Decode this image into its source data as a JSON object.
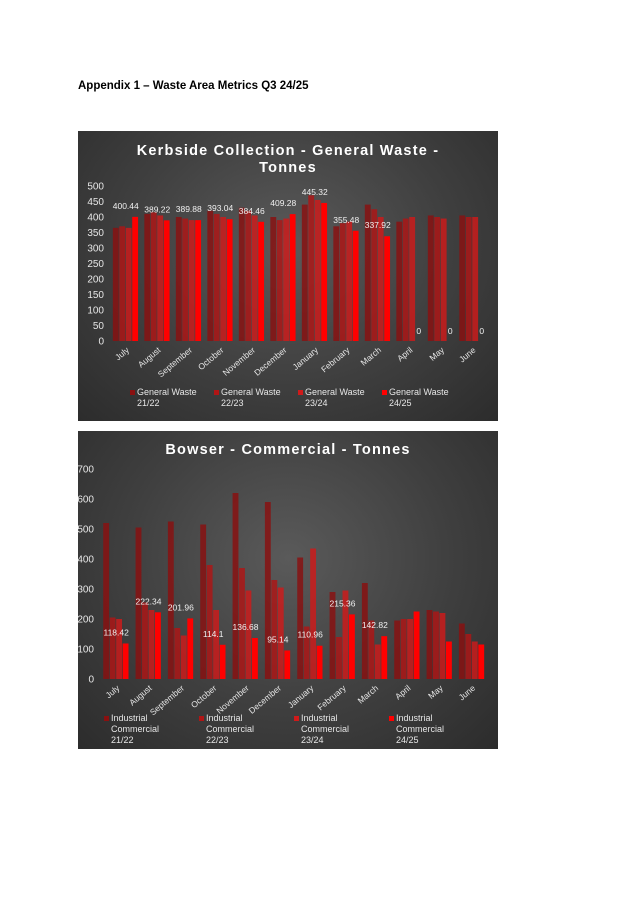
{
  "page": {
    "heading": "Appendix 1 – Waste Area Metrics Q3 24/25"
  },
  "chart_data": [
    {
      "type": "bar",
      "title_line1": "Kerbside Collection - General Waste -",
      "title_line2": "Tonnes",
      "categories": [
        "July",
        "August",
        "September",
        "October",
        "November",
        "December",
        "January",
        "February",
        "March",
        "April",
        "May",
        "June"
      ],
      "ylim": [
        0,
        500
      ],
      "yticks": [
        0,
        50,
        100,
        150,
        200,
        250,
        300,
        350,
        400,
        450,
        500
      ],
      "grid": false,
      "legend_position": "bottom",
      "colors": [
        "#8a1010",
        "#b01515",
        "#d01a1a",
        "#ff0000"
      ],
      "legend_lines": [
        [
          "General Waste",
          "21/22"
        ],
        [
          "General Waste",
          "22/23"
        ],
        [
          "General Waste",
          "23/24"
        ],
        [
          "General Waste",
          "24/25"
        ]
      ],
      "series": [
        {
          "name": "General Waste 21/22",
          "values": [
            365,
            410,
            400,
            420,
            430,
            400,
            440,
            370,
            440,
            385,
            405,
            405
          ]
        },
        {
          "name": "General Waste 22/23",
          "values": [
            370,
            415,
            395,
            410,
            420,
            390,
            470,
            380,
            425,
            395,
            400,
            400
          ]
        },
        {
          "name": "General Waste 23/24",
          "values": [
            365,
            405,
            390,
            400,
            405,
            395,
            455,
            385,
            400,
            400,
            395,
            400
          ]
        },
        {
          "name": "General Waste 24/25",
          "values": [
            400.44,
            389.22,
            389.88,
            393.04,
            384.46,
            409.28,
            445.32,
            355.48,
            337.92,
            0,
            0,
            0
          ]
        }
      ],
      "data_labels": [
        "400.44",
        "389.22",
        "389.88",
        "393.04",
        "384.46",
        "409.28",
        "445.32",
        "355.48",
        "337.92",
        "0",
        "0",
        "0"
      ]
    },
    {
      "type": "bar",
      "title": "Bowser - Commercial - Tonnes",
      "categories": [
        "July",
        "August",
        "September",
        "October",
        "November",
        "December",
        "January",
        "February",
        "March",
        "April",
        "May",
        "June"
      ],
      "ylim": [
        0,
        700
      ],
      "yticks": [
        0,
        100,
        200,
        300,
        400,
        500,
        600,
        700
      ],
      "grid": false,
      "legend_position": "bottom",
      "colors": [
        "#8a1010",
        "#b01515",
        "#d01a1a",
        "#ff0000"
      ],
      "legend_lines": [
        [
          "Industrial Commercial",
          "21/22"
        ],
        [
          "Industrial Commercial",
          "22/23"
        ],
        [
          "Industrial Commercial",
          "23/24"
        ],
        [
          "Industrial Commercial",
          "24/25"
        ]
      ],
      "series": [
        {
          "name": "Industrial Commercial 21/22",
          "values": [
            520,
            505,
            525,
            515,
            620,
            590,
            405,
            290,
            320,
            195,
            230,
            185
          ]
        },
        {
          "name": "Industrial Commercial 22/23",
          "values": [
            205,
            255,
            170,
            380,
            370,
            330,
            175,
            140,
            195,
            200,
            225,
            150
          ]
        },
        {
          "name": "Industrial Commercial 23/24",
          "values": [
            200,
            230,
            145,
            230,
            295,
            305,
            435,
            295,
            115,
            200,
            220,
            125
          ]
        },
        {
          "name": "Industrial Commercial 24/25",
          "values": [
            118.42,
            222.34,
            201.96,
            114.1,
            136.68,
            95.14,
            110.96,
            215.36,
            142.82,
            225,
            125,
            115
          ]
        }
      ],
      "data_labels": [
        "118.42",
        "222.34",
        "201.96",
        "114.1",
        "136.68",
        "95.14",
        "110.96",
        "215.36",
        "142.82",
        "",
        "",
        ""
      ]
    }
  ]
}
